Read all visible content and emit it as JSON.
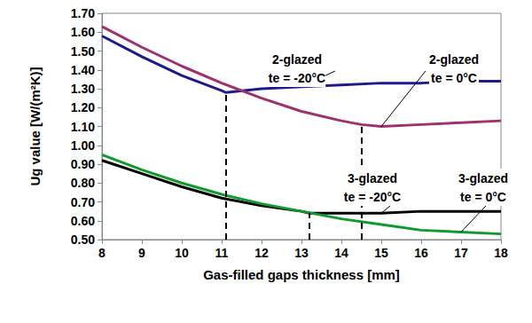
{
  "chart_data": {
    "type": "line",
    "x_label": "Gas-filled gaps thickness [mm]",
    "y_label": "Ug value [W/(m²K)]",
    "xlim": [
      8,
      18
    ],
    "xticks": [
      8,
      9,
      10,
      11,
      12,
      13,
      14,
      15,
      16,
      17,
      18
    ],
    "ylim": [
      0.5,
      1.7
    ],
    "yticks": [
      {
        "value": 0.5,
        "label": "0.50"
      },
      {
        "value": 0.6,
        "label": "0.60"
      },
      {
        "value": 0.7,
        "label": "0.70"
      },
      {
        "value": 0.8,
        "label": "0.80"
      },
      {
        "value": 0.9,
        "label": "0.90"
      },
      {
        "value": 1.0,
        "label": "1.00"
      },
      {
        "value": 1.1,
        "label": "1.10"
      },
      {
        "value": 1.2,
        "label": "1.20"
      },
      {
        "value": 1.3,
        "label": "1.30"
      },
      {
        "value": 1.4,
        "label": "1.40"
      },
      {
        "value": 1.5,
        "label": "1.50"
      },
      {
        "value": 1.6,
        "label": "1.60"
      },
      {
        "value": 1.7,
        "label": "1.70"
      }
    ],
    "grid": false,
    "series": [
      {
        "name": "2-glazed\nte = -20°C",
        "color": "#1f1a8c",
        "x": [
          8,
          9,
          10,
          11,
          11.1,
          12,
          13,
          14,
          15,
          16,
          17,
          18
        ],
        "values": [
          1.58,
          1.47,
          1.37,
          1.29,
          1.28,
          1.3,
          1.31,
          1.32,
          1.33,
          1.33,
          1.34,
          1.34
        ]
      },
      {
        "name": "2-glazed\nte = 0°C",
        "color": "#a0306e",
        "x": [
          8,
          9,
          10,
          11,
          12,
          13,
          14,
          14.5,
          15,
          16,
          17,
          18
        ],
        "values": [
          1.63,
          1.52,
          1.42,
          1.33,
          1.25,
          1.18,
          1.13,
          1.11,
          1.1,
          1.11,
          1.12,
          1.13
        ]
      },
      {
        "name": "3-glazed\nte = -20°C",
        "color": "#000000",
        "x": [
          8,
          9,
          10,
          11,
          12,
          13,
          13.2,
          14,
          15,
          16,
          17,
          18
        ],
        "values": [
          0.92,
          0.85,
          0.78,
          0.72,
          0.68,
          0.65,
          0.64,
          0.64,
          0.64,
          0.65,
          0.65,
          0.65
        ]
      },
      {
        "name": "3-glazed\nte = 0°C",
        "color": "#0f9a2c",
        "x": [
          8,
          9,
          10,
          11,
          12,
          13,
          14,
          15,
          16,
          17,
          18
        ],
        "values": [
          0.95,
          0.87,
          0.8,
          0.74,
          0.69,
          0.65,
          0.61,
          0.58,
          0.55,
          0.54,
          0.53
        ]
      }
    ],
    "vlines": [
      {
        "x": 11.1,
        "y": 1.28
      },
      {
        "x": 13.2,
        "y": 0.64
      },
      {
        "x": 14.5,
        "y": 1.11
      }
    ]
  }
}
